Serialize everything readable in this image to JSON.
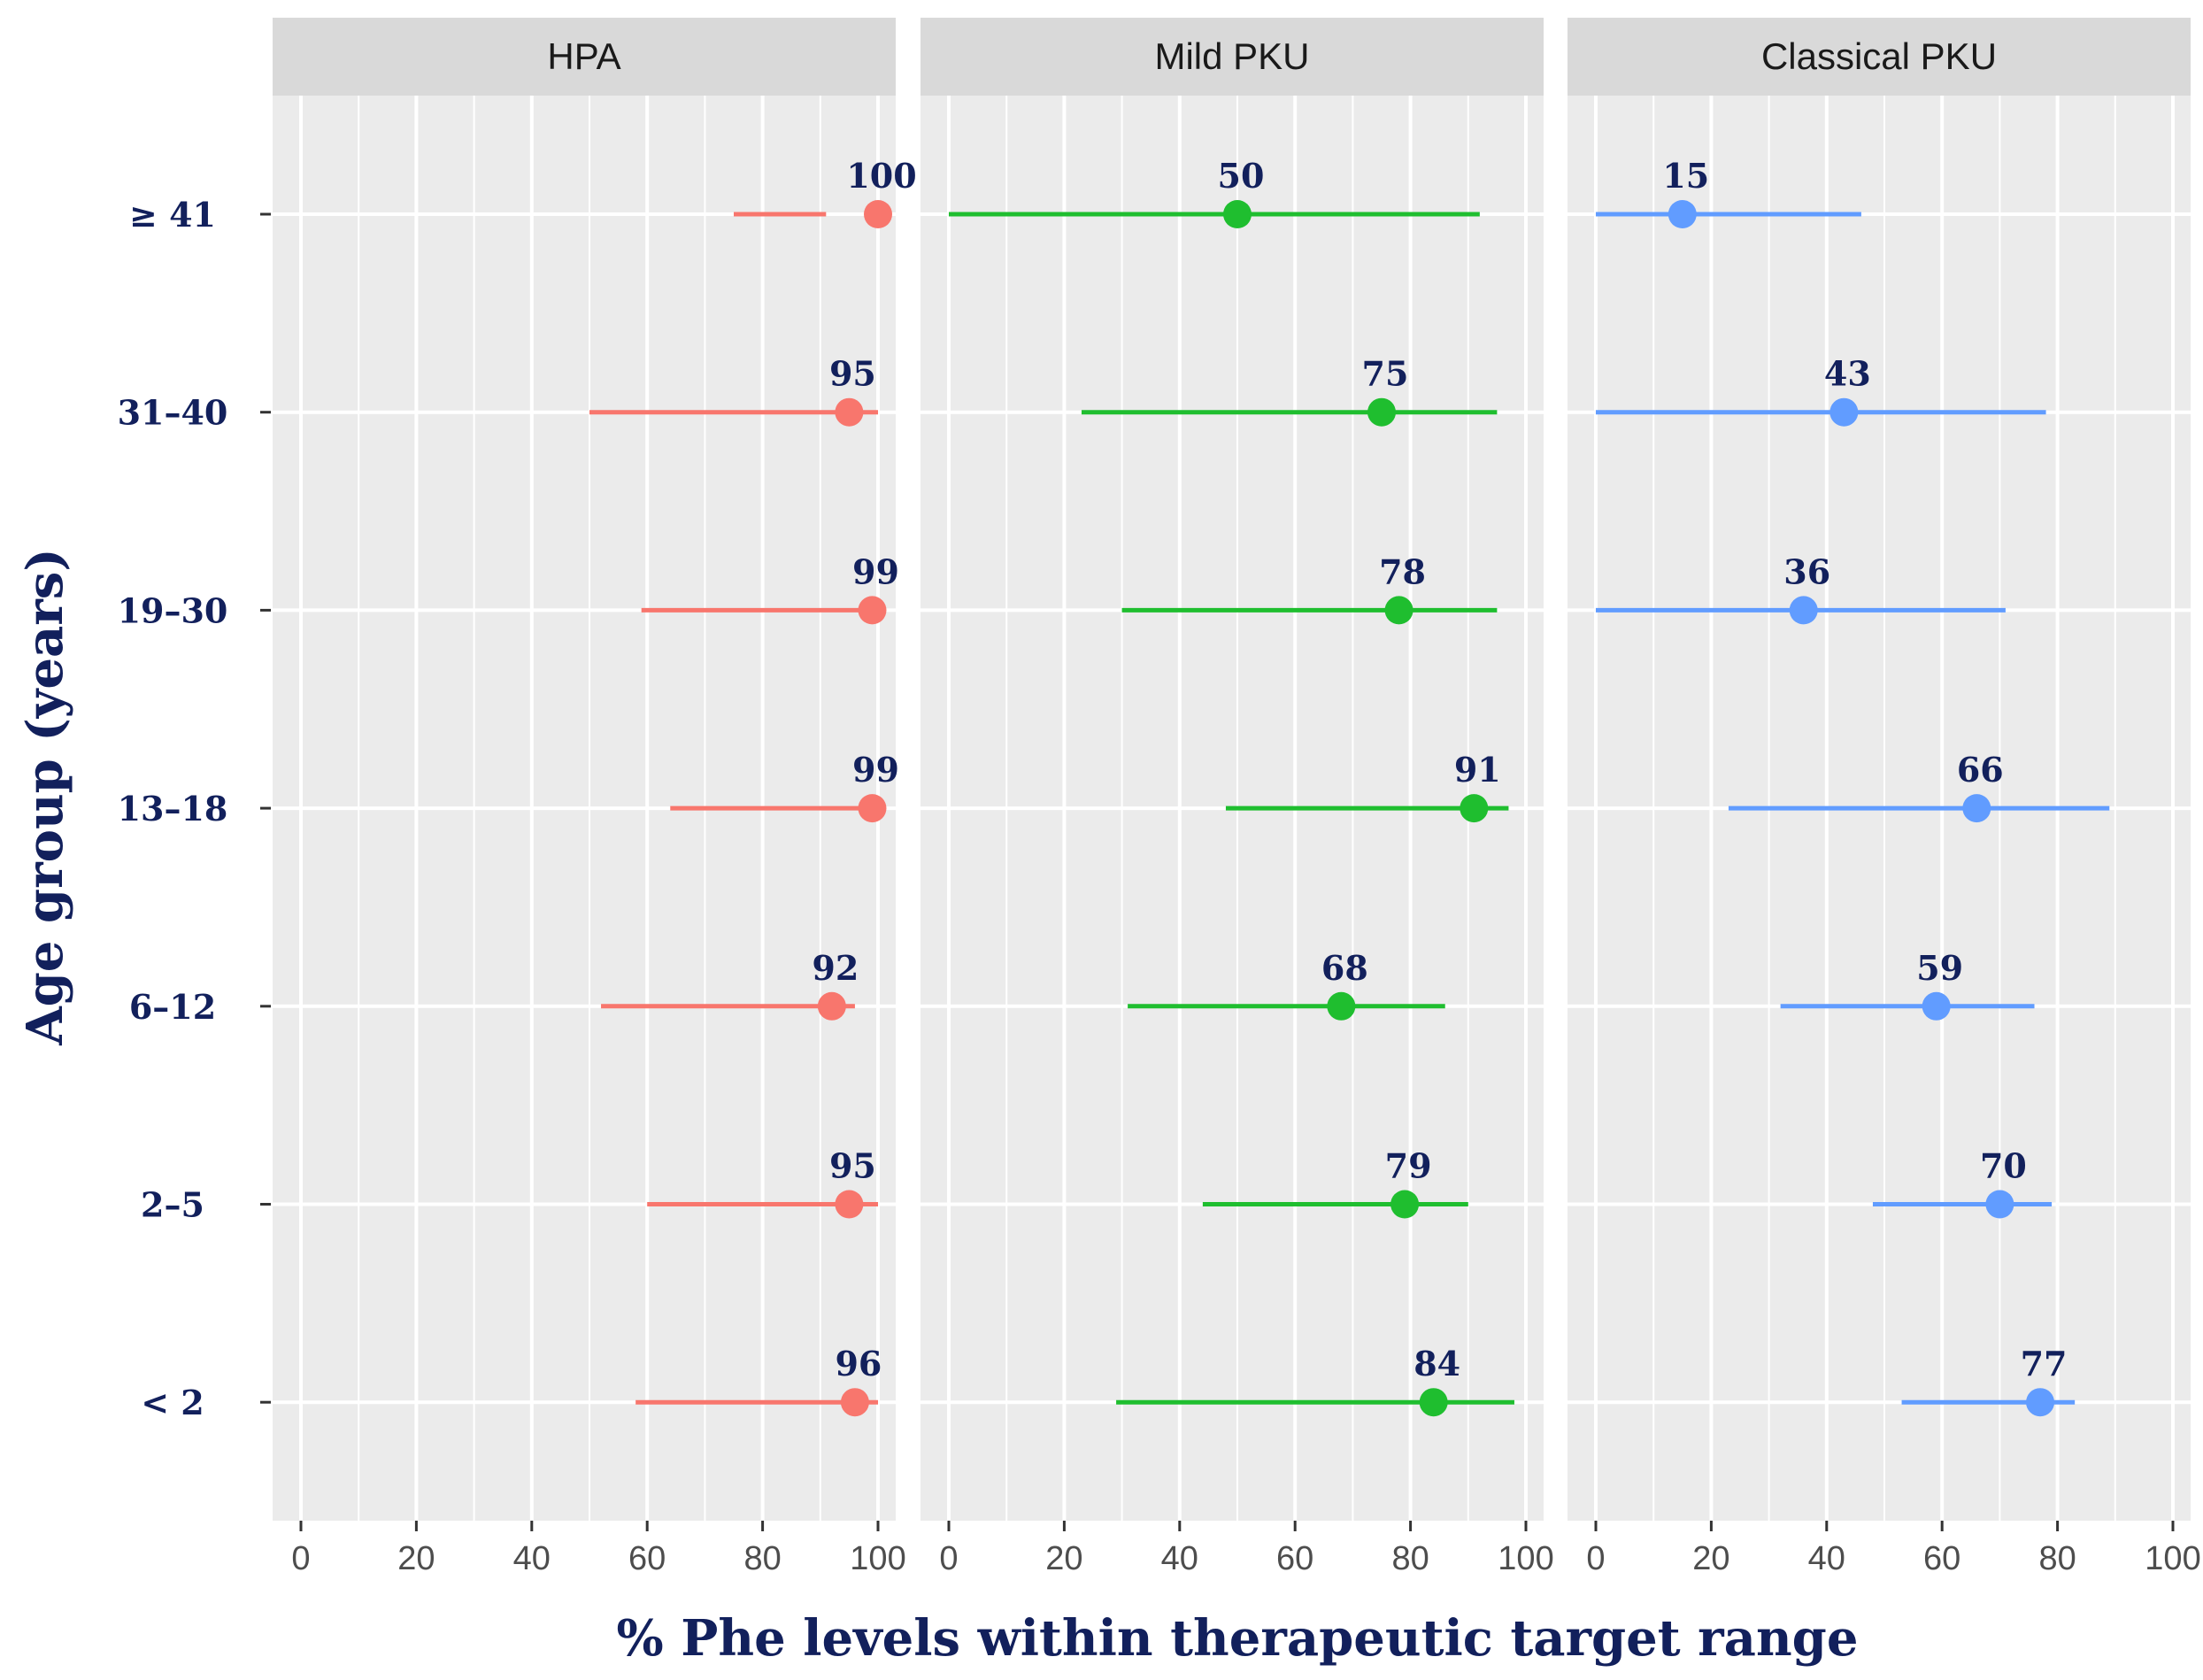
{
  "chart_data": {
    "type": "dot-with-range (faceted)",
    "xlabel": "% Phe levels within therapeutic target range",
    "ylabel": "Age group (years)",
    "xlim": [
      0,
      100
    ],
    "x_ticks": [
      "0",
      "20",
      "40",
      "60",
      "80",
      "100"
    ],
    "categories": [
      "≥ 41",
      "31–40",
      "19–30",
      "13–18",
      "6–12",
      "2–5",
      "< 2"
    ],
    "grid": true,
    "panels": [
      {
        "name": "HPA",
        "color": "#F8766D",
        "points": [
          {
            "group": "≥ 41",
            "value": 100,
            "label": "100",
            "low": 75,
            "high": 91
          },
          {
            "group": "31–40",
            "value": 95,
            "label": "95",
            "low": 50,
            "high": 100
          },
          {
            "group": "19–30",
            "value": 99,
            "label": "99",
            "low": 59,
            "high": 100
          },
          {
            "group": "13–18",
            "value": 99,
            "label": "99",
            "low": 64,
            "high": 100
          },
          {
            "group": "6–12",
            "value": 92,
            "label": "92",
            "low": 52,
            "high": 96
          },
          {
            "group": "2–5",
            "value": 95,
            "label": "95",
            "low": 60,
            "high": 100
          },
          {
            "group": "< 2",
            "value": 96,
            "label": "96",
            "low": 58,
            "high": 100
          }
        ]
      },
      {
        "name": "Mild PKU",
        "color": "#1FBE2F",
        "points": [
          {
            "group": "≥ 41",
            "value": 50,
            "label": "50",
            "low": 0,
            "high": 92
          },
          {
            "group": "31–40",
            "value": 75,
            "label": "75",
            "low": 23,
            "high": 95
          },
          {
            "group": "19–30",
            "value": 78,
            "label": "78",
            "low": 30,
            "high": 95
          },
          {
            "group": "13–18",
            "value": 91,
            "label": "91",
            "low": 48,
            "high": 97
          },
          {
            "group": "6–12",
            "value": 68,
            "label": "68",
            "low": 31,
            "high": 86
          },
          {
            "group": "2–5",
            "value": 79,
            "label": "79",
            "low": 44,
            "high": 90
          },
          {
            "group": "< 2",
            "value": 84,
            "label": "84",
            "low": 29,
            "high": 98
          }
        ]
      },
      {
        "name": "Classical PKU",
        "color": "#619CFF",
        "points": [
          {
            "group": "≥ 41",
            "value": 15,
            "label": "15",
            "low": 0,
            "high": 46
          },
          {
            "group": "31–40",
            "value": 43,
            "label": "43",
            "low": 0,
            "high": 78
          },
          {
            "group": "19–30",
            "value": 36,
            "label": "36",
            "low": 0,
            "high": 71
          },
          {
            "group": "13–18",
            "value": 66,
            "label": "66",
            "low": 23,
            "high": 89
          },
          {
            "group": "6–12",
            "value": 59,
            "label": "59",
            "low": 32,
            "high": 76
          },
          {
            "group": "2–5",
            "value": 70,
            "label": "70",
            "low": 48,
            "high": 79
          },
          {
            "group": "< 2",
            "value": 77,
            "label": "77",
            "low": 53,
            "high": 83
          }
        ]
      }
    ]
  }
}
